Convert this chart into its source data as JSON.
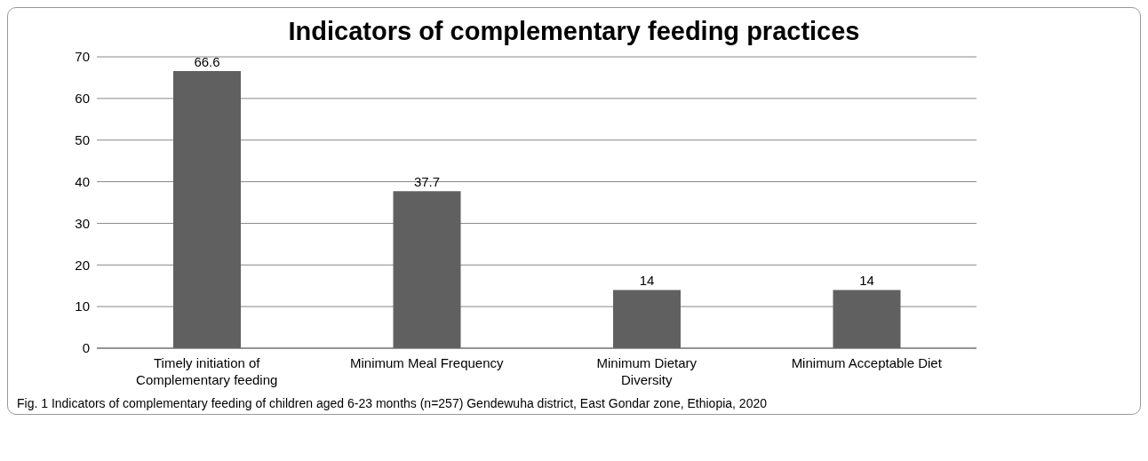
{
  "chart_data": {
    "type": "bar",
    "title": "Indicators of complementary feeding practices",
    "categories": [
      "Timely initiation of Complementary feeding",
      "Minimum Meal Frequency",
      "Minimum Dietary Diversity",
      "Minimum Acceptable Diet"
    ],
    "values": [
      66.6,
      37.7,
      14,
      14
    ],
    "color": "#606060",
    "ylim": [
      0,
      70
    ],
    "yticks": [
      0,
      10,
      20,
      30,
      40,
      50,
      60,
      70
    ],
    "grid": "y",
    "data_labels": true,
    "annotations": [
      "Fig. 1  Indicators of complementary feeding of children aged 6-23 months (n=257) Gendewuha district, East Gondar zone, Ethiopia, 2020"
    ]
  }
}
